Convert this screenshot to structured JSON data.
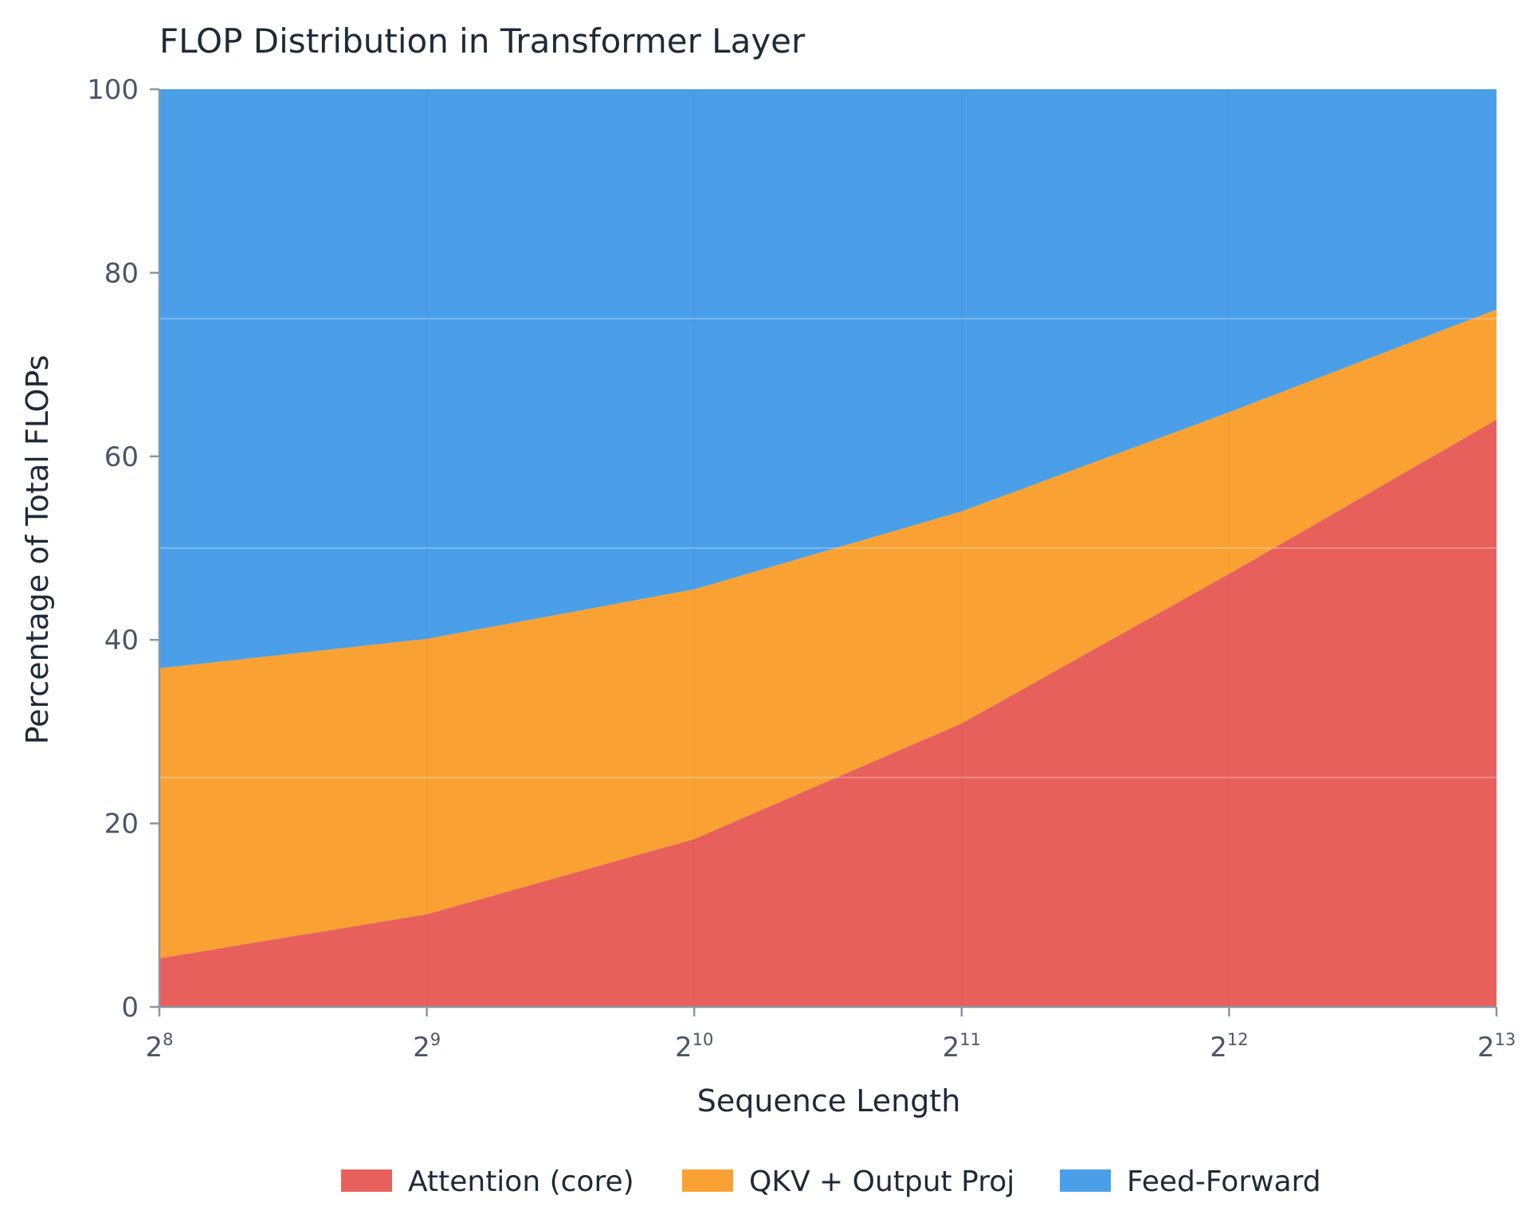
{
  "chart_data": {
    "type": "area",
    "stacked": true,
    "title": "FLOP Distribution in Transformer Layer",
    "xlabel": "Sequence Length",
    "ylabel": "Percentage of Total FLOPs",
    "x": [
      256,
      512,
      1024,
      2048,
      4096,
      8192
    ],
    "x_tick_labels": [
      {
        "base": "2",
        "exp": "8"
      },
      {
        "base": "2",
        "exp": "9"
      },
      {
        "base": "2",
        "exp": "10"
      },
      {
        "base": "2",
        "exp": "11"
      },
      {
        "base": "2",
        "exp": "12"
      },
      {
        "base": "2",
        "exp": "13"
      }
    ],
    "x_scale": "log2",
    "ylim": [
      0,
      100
    ],
    "y_ticks": [
      "0",
      "20",
      "40",
      "60",
      "80",
      "100"
    ],
    "grid": true,
    "legend_position": "bottom",
    "series": [
      {
        "name": "Attention (core)",
        "color": "#e8605c",
        "values": [
          5.3,
          10.1,
          18.3,
          30.9,
          47.2,
          64.0
        ]
      },
      {
        "name": "QKV + Output Proj",
        "color": "#f9a233",
        "values": [
          31.6,
          30.0,
          27.2,
          23.1,
          17.6,
          12.0
        ]
      },
      {
        "name": "Feed-Forward",
        "color": "#4a9fe8",
        "values": [
          63.1,
          59.9,
          54.5,
          46.0,
          35.2,
          24.0
        ]
      }
    ]
  }
}
